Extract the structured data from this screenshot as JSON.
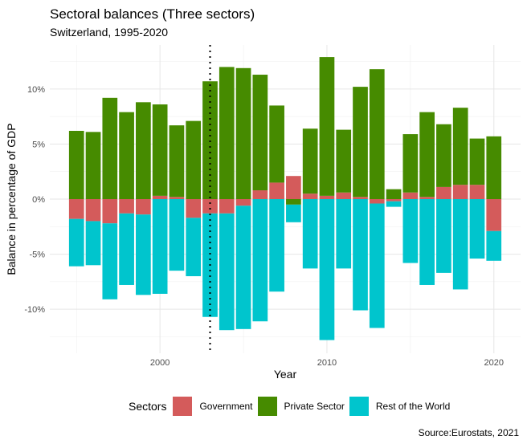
{
  "chart_data": {
    "type": "bar",
    "stacked": true,
    "title": "Sectoral balances (Three sectors)",
    "subtitle": "Switzerland, 1995-2020",
    "xlabel": "Year",
    "ylabel": "Balance in percentage of GDP",
    "caption": "Source:Eurostats, 2021",
    "legend_title": "Sectors",
    "legend_position": "bottom",
    "xlim": [
      1993.4,
      2021.6
    ],
    "ylim": [
      -14,
      14
    ],
    "x_ticks": [
      2000,
      2010,
      2020
    ],
    "y_ticks": [
      -10,
      -5,
      0,
      5,
      10
    ],
    "y_tick_labels": [
      "-10%",
      "-5%",
      "0%",
      "5%",
      "10%"
    ],
    "vline_x": 2003,
    "grid": true,
    "x": [
      1995,
      1996,
      1997,
      1998,
      1999,
      2000,
      2001,
      2002,
      2003,
      2004,
      2005,
      2006,
      2007,
      2008,
      2009,
      2010,
      2011,
      2012,
      2013,
      2014,
      2015,
      2016,
      2017,
      2018,
      2019,
      2020
    ],
    "series": [
      {
        "name": "Government",
        "color": "#d45b5b",
        "values": [
          -1.8,
          -2.0,
          -2.2,
          -1.3,
          -1.4,
          0.3,
          0.2,
          -1.7,
          -1.3,
          -1.3,
          -0.6,
          0.8,
          1.5,
          2.1,
          0.5,
          0.3,
          0.6,
          0.2,
          -0.4,
          -0.2,
          0.6,
          0.2,
          1.1,
          1.3,
          1.3,
          -2.9
        ]
      },
      {
        "name": "Private Sector",
        "color": "#468b00",
        "values": [
          6.2,
          6.1,
          9.2,
          7.9,
          8.8,
          8.3,
          6.5,
          7.1,
          10.7,
          12.0,
          11.9,
          10.5,
          7.0,
          -0.5,
          5.9,
          12.6,
          5.7,
          10.0,
          11.8,
          0.9,
          5.3,
          7.7,
          5.7,
          7.0,
          4.2,
          5.7
        ]
      },
      {
        "name": "Rest of the World",
        "color": "#00c5cd",
        "values": [
          -4.3,
          -4.0,
          -6.9,
          -6.5,
          -7.3,
          -8.6,
          -6.5,
          -5.3,
          -9.4,
          -10.6,
          -11.2,
          -11.1,
          -8.4,
          -1.6,
          -6.3,
          -12.8,
          -6.3,
          -10.1,
          -11.3,
          -0.5,
          -5.8,
          -7.8,
          -6.7,
          -8.2,
          -5.4,
          -2.7
        ]
      }
    ]
  }
}
